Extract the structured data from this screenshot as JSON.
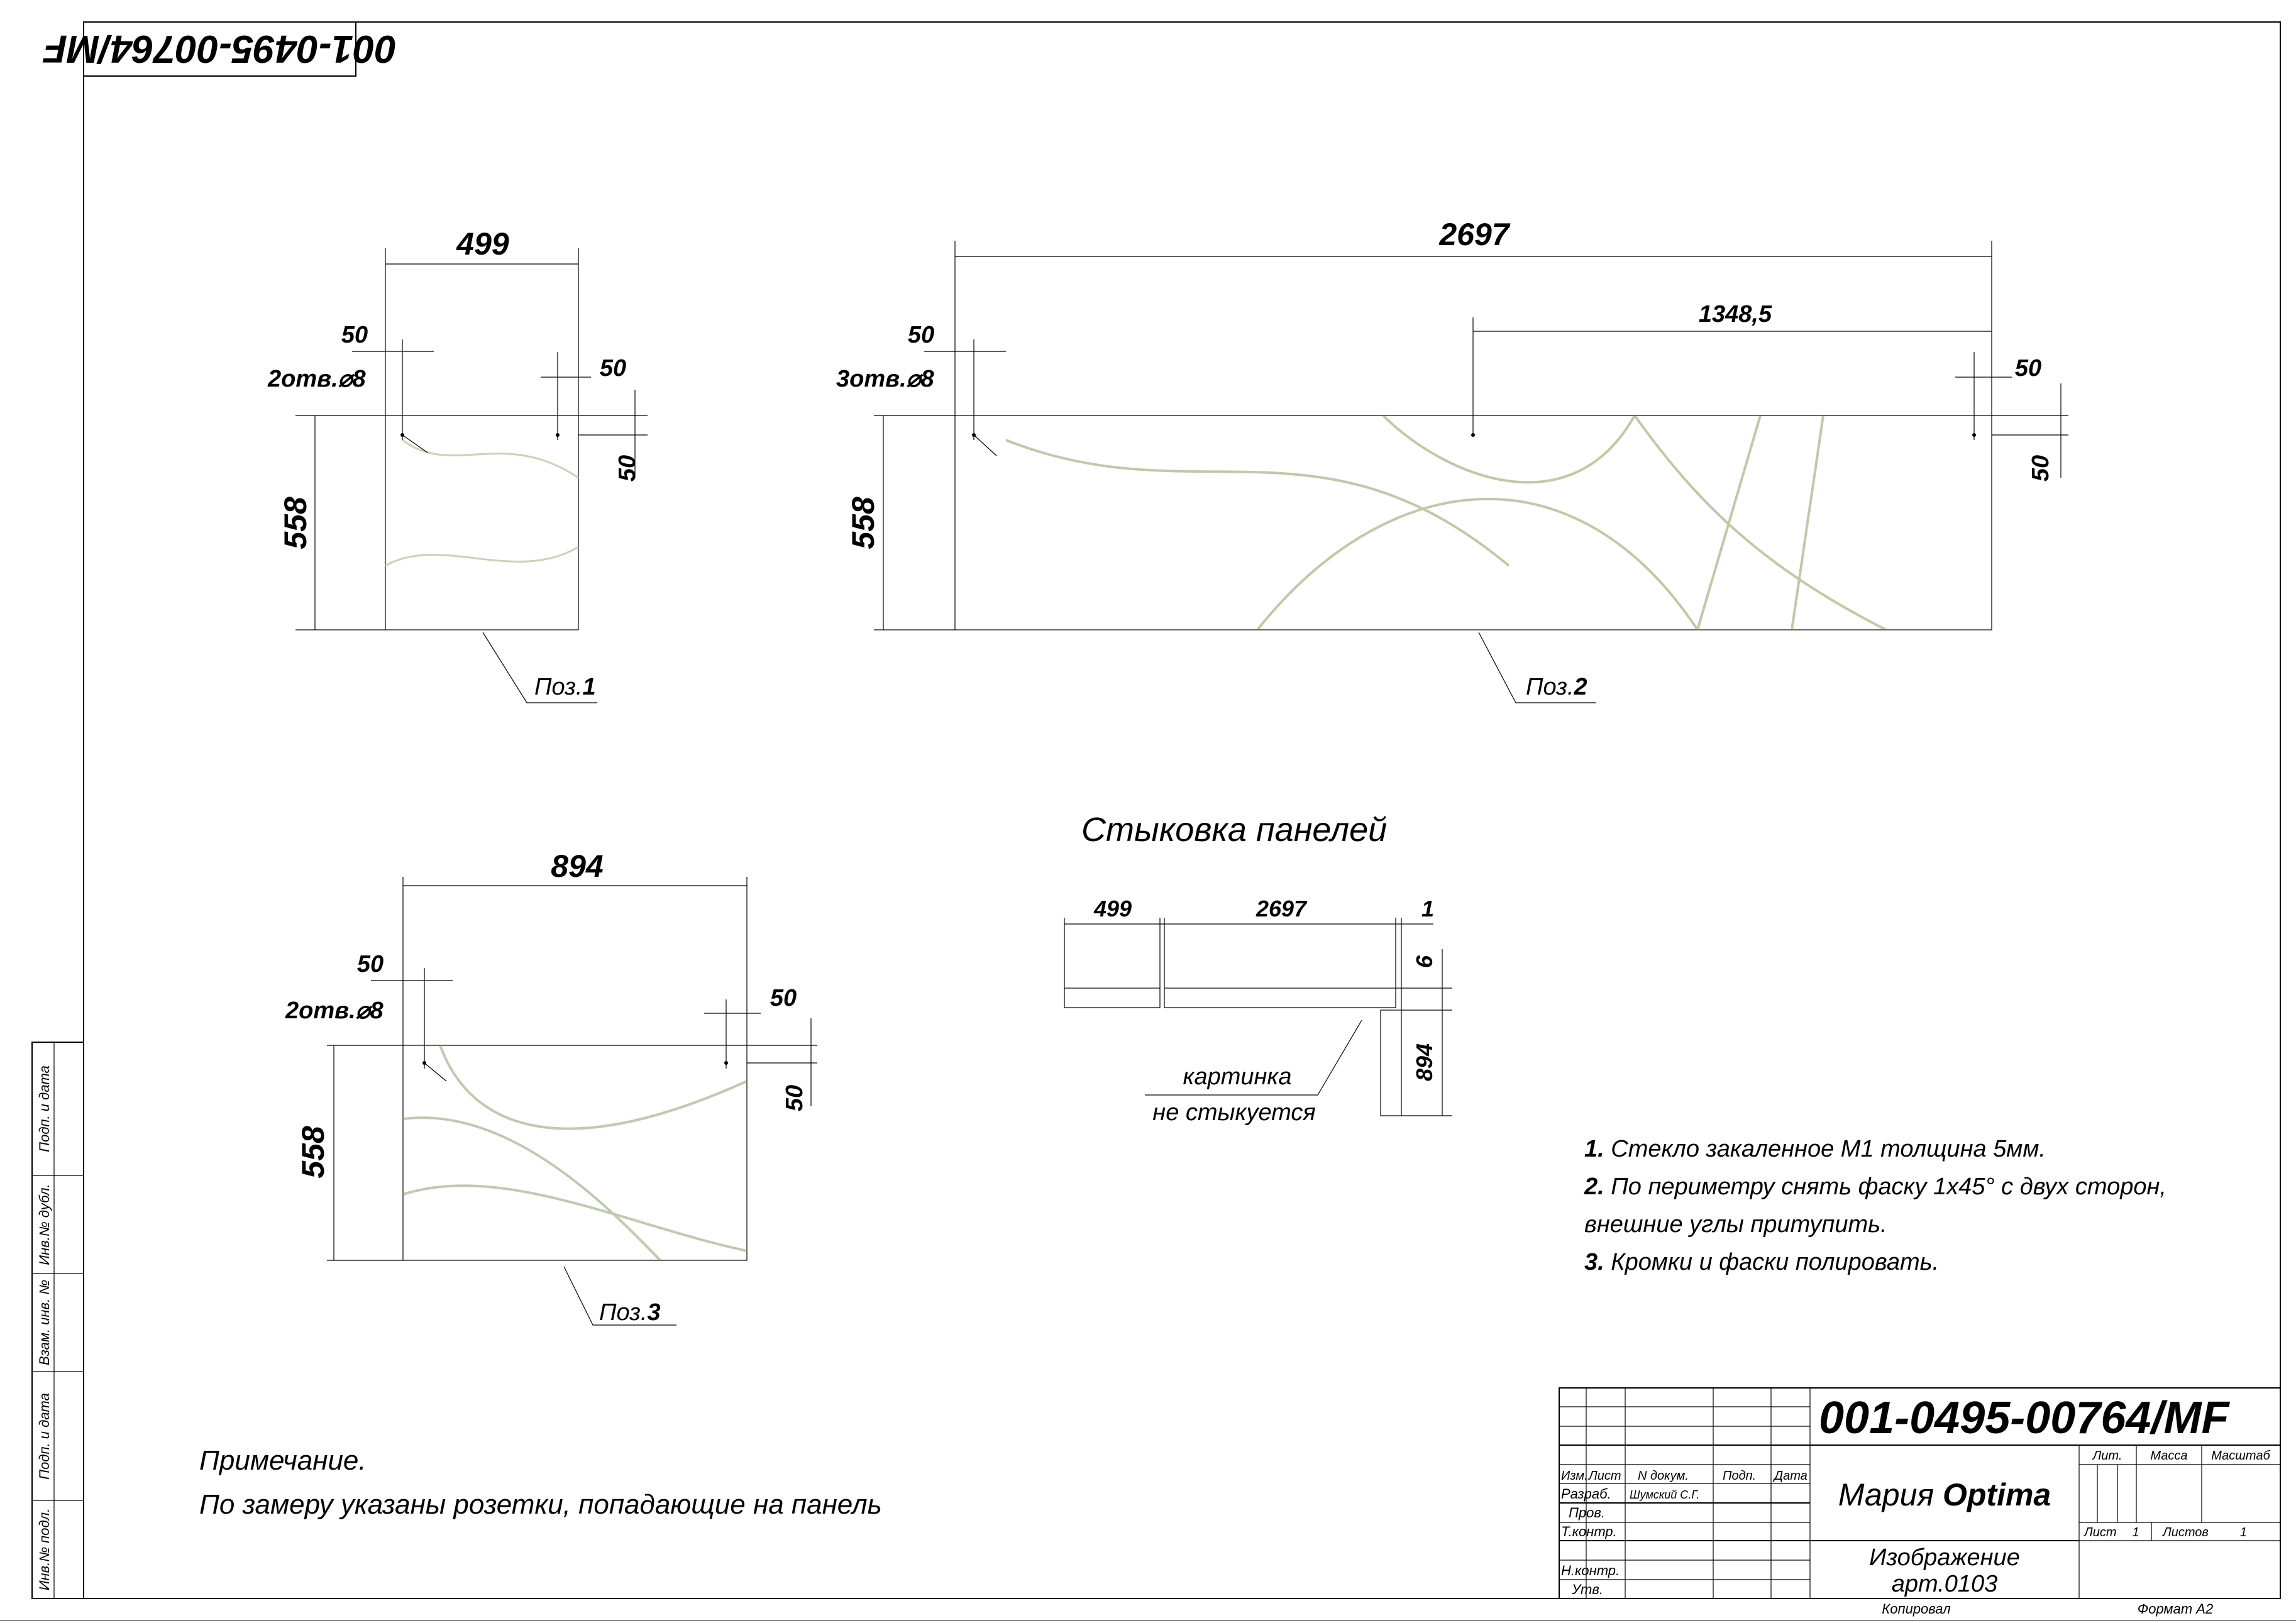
{
  "stamp_code": "001-0495-00764/MF",
  "panels": [
    {
      "pos_label": "Поз.",
      "pos_num": "1",
      "width": "499",
      "height": "558",
      "holes": "2отв.⌀8",
      "offset_left": "50",
      "offset_right": "50",
      "offset_top": "50"
    },
    {
      "pos_label": "Поз.",
      "pos_num": "2",
      "width": "2697",
      "height": "558",
      "holes": "3отв.⌀8",
      "offset_left": "50",
      "offset_right": "50",
      "offset_top": "50",
      "half": "1348,5"
    },
    {
      "pos_label": "Поз.",
      "pos_num": "3",
      "width": "894",
      "height": "558",
      "holes": "2отв.⌀8",
      "offset_left": "50",
      "offset_right": "50",
      "offset_top": "50"
    }
  ],
  "joint": {
    "title": "Стыковка панелей",
    "dim_a": "499",
    "dim_b": "2697",
    "dim_gap": "1",
    "dim_thick": "6",
    "dim_side": "894",
    "note_line1": "картинка",
    "note_line2": "не стыкуется"
  },
  "notes": [
    {
      "num": "1.",
      "text": " Стекло закаленное М1 толщина 5мм."
    },
    {
      "num": "2.",
      "text": " По периметру снять фаску 1х45°  с двух сторон,"
    },
    {
      "num": "",
      "text": "внешние углы притупить."
    },
    {
      "num": "3.",
      "text": " Кромки и фаски полировать."
    }
  ],
  "remark": {
    "title": "Примечание.",
    "text": "По замеру указаны розетки, попадающие на панель"
  },
  "title_block": {
    "code": "001-0495-00764/MF",
    "name_a": "Мария ",
    "name_b": "Optima",
    "desc1": "Изображение",
    "desc2": "арт.0103",
    "headers": [
      "Изм.",
      "Лист",
      "N докум.",
      "Подп.",
      "Дата"
    ],
    "roles": [
      "Разраб.",
      "Пров.",
      "Т.контр.",
      "Н.контр.",
      "Утв."
    ],
    "developer": "Шумский С.Г.",
    "lit": "Лит.",
    "mass": "Масса",
    "scale": "Масштаб",
    "sheet_label": "Лист",
    "sheet": "1",
    "sheets_label": "Листов",
    "sheets": "1",
    "copied": "Копировал",
    "format": "Формат А2"
  },
  "side_stamp": [
    "Инв.№ подл.",
    "Подп. и дата",
    "Взам. инв. №",
    "Инв.№ дубл.",
    "Подп. и дата"
  ]
}
